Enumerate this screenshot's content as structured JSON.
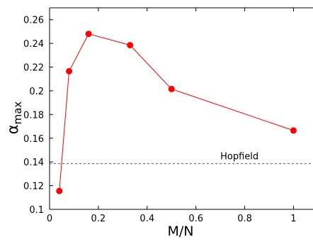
{
  "chart_data": {
    "type": "line",
    "xlabel": "M/N",
    "ylabel": {
      "main": "α",
      "sub": "max"
    },
    "xlim": [
      0,
      1.08
    ],
    "ylim": [
      0.1,
      0.27
    ],
    "xticks": [
      0,
      0.2,
      0.4,
      0.6,
      0.8,
      1
    ],
    "xtick_labels": [
      "0",
      "0.2",
      "0.4",
      "0.6",
      "0.8",
      "1"
    ],
    "yticks": [
      0.1,
      0.12,
      0.14,
      0.16,
      0.18,
      0.2,
      0.22,
      0.24,
      0.26
    ],
    "ytick_labels": [
      "0.1",
      "0.12",
      "0.14",
      "0.16",
      "0.18",
      "0.2",
      "0.22",
      "0.24",
      "0.26"
    ],
    "series": [
      {
        "x": [
          0.04,
          0.08,
          0.16,
          0.33,
          0.5,
          1.0
        ],
        "y": [
          0.1155,
          0.2165,
          0.248,
          0.2385,
          0.2015,
          0.1665
        ],
        "color": "#ff0000",
        "marker": "circle"
      }
    ],
    "reference_line": {
      "y": 0.1385,
      "label": "Hopfield",
      "label_x": 0.7,
      "style": "dashed",
      "color": "#555555"
    },
    "grid": false
  }
}
